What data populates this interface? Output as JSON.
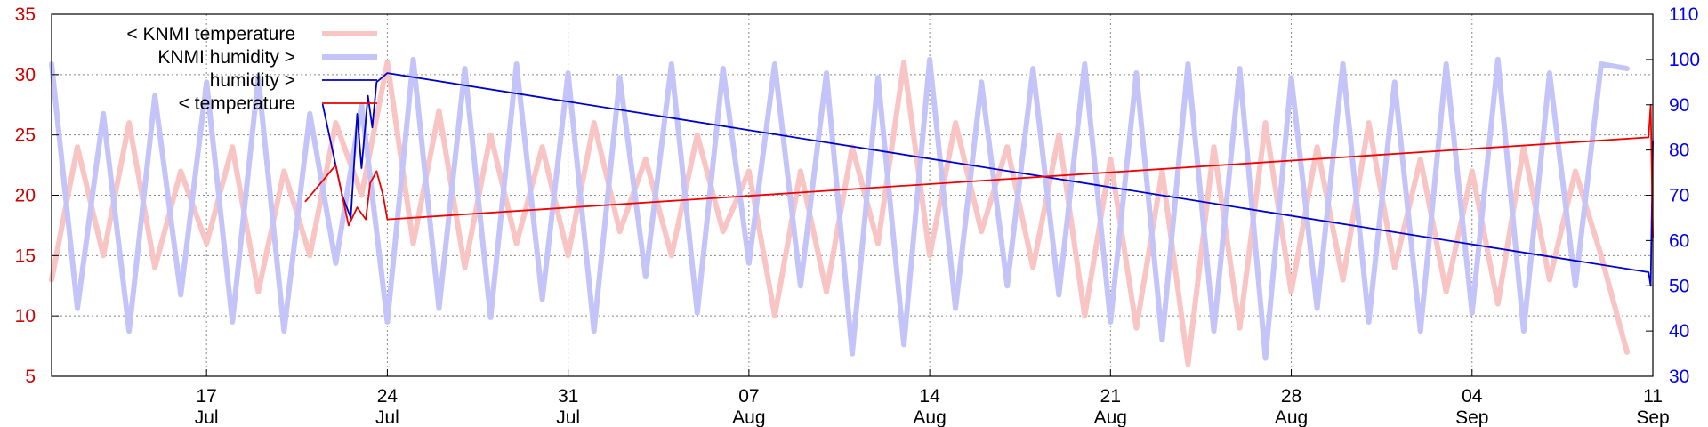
{
  "chart_data": {
    "type": "line",
    "title": "",
    "xlabel": "",
    "ylabel_left": "",
    "ylabel_right": "",
    "xlim": [
      "2019-07-11",
      "2019-09-11"
    ],
    "ylim_left": [
      5,
      35
    ],
    "ylim_right": [
      30,
      110
    ],
    "grid": true,
    "legend_position": "top-left",
    "x_ticks": [
      {
        "date": "2019-07-17",
        "day": "17",
        "month": "Jul"
      },
      {
        "date": "2019-07-24",
        "day": "24",
        "month": "Jul"
      },
      {
        "date": "2019-07-31",
        "day": "31",
        "month": "Jul"
      },
      {
        "date": "2019-08-07",
        "day": "07",
        "month": "Aug"
      },
      {
        "date": "2019-08-14",
        "day": "14",
        "month": "Aug"
      },
      {
        "date": "2019-08-21",
        "day": "21",
        "month": "Aug"
      },
      {
        "date": "2019-08-28",
        "day": "28",
        "month": "Aug"
      },
      {
        "date": "2019-09-04",
        "day": "04",
        "month": "Sep"
      },
      {
        "date": "2019-09-11",
        "day": "11",
        "month": "Sep"
      }
    ],
    "y_ticks_left": [
      5,
      10,
      15,
      20,
      25,
      30,
      35
    ],
    "y_ticks_right": [
      30,
      40,
      50,
      60,
      70,
      80,
      90,
      100,
      110
    ],
    "series": [
      {
        "name": "< KNMI temperature",
        "axis": "left",
        "color": "#f8c4c4",
        "points": [
          [
            "2019-07-11",
            13
          ],
          [
            "2019-07-12",
            24
          ],
          [
            "2019-07-13",
            15
          ],
          [
            "2019-07-14",
            26
          ],
          [
            "2019-07-15",
            14
          ],
          [
            "2019-07-16",
            22
          ],
          [
            "2019-07-17",
            16
          ],
          [
            "2019-07-18",
            24
          ],
          [
            "2019-07-19",
            12
          ],
          [
            "2019-07-20",
            22
          ],
          [
            "2019-07-21",
            15
          ],
          [
            "2019-07-22",
            26
          ],
          [
            "2019-07-23",
            20
          ],
          [
            "2019-07-24",
            31
          ],
          [
            "2019-07-25",
            16
          ],
          [
            "2019-07-26",
            27
          ],
          [
            "2019-07-27",
            14
          ],
          [
            "2019-07-28",
            25
          ],
          [
            "2019-07-29",
            16
          ],
          [
            "2019-07-30",
            24
          ],
          [
            "2019-07-31",
            15
          ],
          [
            "2019-08-01",
            26
          ],
          [
            "2019-08-02",
            17
          ],
          [
            "2019-08-03",
            23
          ],
          [
            "2019-08-04",
            15
          ],
          [
            "2019-08-05",
            25
          ],
          [
            "2019-08-06",
            17
          ],
          [
            "2019-08-07",
            22
          ],
          [
            "2019-08-08",
            10
          ],
          [
            "2019-08-09",
            22
          ],
          [
            "2019-08-10",
            12
          ],
          [
            "2019-08-11",
            24
          ],
          [
            "2019-08-12",
            16
          ],
          [
            "2019-08-13",
            31
          ],
          [
            "2019-08-14",
            15
          ],
          [
            "2019-08-15",
            26
          ],
          [
            "2019-08-16",
            17
          ],
          [
            "2019-08-17",
            24
          ],
          [
            "2019-08-18",
            14
          ],
          [
            "2019-08-19",
            25
          ],
          [
            "2019-08-20",
            10
          ],
          [
            "2019-08-21",
            23
          ],
          [
            "2019-08-22",
            9
          ],
          [
            "2019-08-23",
            22
          ],
          [
            "2019-08-24",
            6
          ],
          [
            "2019-08-25",
            24
          ],
          [
            "2019-08-26",
            9
          ],
          [
            "2019-08-27",
            26
          ],
          [
            "2019-08-28",
            12
          ],
          [
            "2019-08-29",
            24
          ],
          [
            "2019-08-30",
            13
          ],
          [
            "2019-08-31",
            26
          ],
          [
            "2019-09-01",
            14
          ],
          [
            "2019-09-02",
            23
          ],
          [
            "2019-09-03",
            12
          ],
          [
            "2019-09-04",
            22
          ],
          [
            "2019-09-05",
            11
          ],
          [
            "2019-09-06",
            24
          ],
          [
            "2019-09-07",
            13
          ],
          [
            "2019-09-08",
            22
          ],
          [
            "2019-09-09",
            15
          ],
          [
            "2019-09-10",
            7
          ]
        ]
      },
      {
        "name": "KNMI humidity >",
        "axis": "right",
        "color": "#c4c4f8",
        "points": [
          [
            "2019-07-11",
            99
          ],
          [
            "2019-07-12",
            45
          ],
          [
            "2019-07-13",
            88
          ],
          [
            "2019-07-14",
            40
          ],
          [
            "2019-07-15",
            92
          ],
          [
            "2019-07-16",
            48
          ],
          [
            "2019-07-17",
            95
          ],
          [
            "2019-07-18",
            42
          ],
          [
            "2019-07-19",
            96
          ],
          [
            "2019-07-20",
            40
          ],
          [
            "2019-07-21",
            88
          ],
          [
            "2019-07-22",
            55
          ],
          [
            "2019-07-23",
            90
          ],
          [
            "2019-07-24",
            42
          ],
          [
            "2019-07-25",
            100
          ],
          [
            "2019-07-26",
            45
          ],
          [
            "2019-07-27",
            98
          ],
          [
            "2019-07-28",
            43
          ],
          [
            "2019-07-29",
            99
          ],
          [
            "2019-07-30",
            47
          ],
          [
            "2019-07-31",
            97
          ],
          [
            "2019-08-01",
            40
          ],
          [
            "2019-08-02",
            96
          ],
          [
            "2019-08-03",
            52
          ],
          [
            "2019-08-04",
            99
          ],
          [
            "2019-08-05",
            44
          ],
          [
            "2019-08-06",
            98
          ],
          [
            "2019-08-07",
            55
          ],
          [
            "2019-08-08",
            99
          ],
          [
            "2019-08-09",
            50
          ],
          [
            "2019-08-10",
            97
          ],
          [
            "2019-08-11",
            35
          ],
          [
            "2019-08-12",
            96
          ],
          [
            "2019-08-13",
            37
          ],
          [
            "2019-08-14",
            100
          ],
          [
            "2019-08-15",
            45
          ],
          [
            "2019-08-16",
            95
          ],
          [
            "2019-08-17",
            50
          ],
          [
            "2019-08-18",
            98
          ],
          [
            "2019-08-19",
            48
          ],
          [
            "2019-08-20",
            99
          ],
          [
            "2019-08-21",
            42
          ],
          [
            "2019-08-22",
            97
          ],
          [
            "2019-08-23",
            38
          ],
          [
            "2019-08-24",
            99
          ],
          [
            "2019-08-25",
            40
          ],
          [
            "2019-08-26",
            98
          ],
          [
            "2019-08-27",
            34
          ],
          [
            "2019-08-28",
            96
          ],
          [
            "2019-08-29",
            45
          ],
          [
            "2019-08-30",
            99
          ],
          [
            "2019-08-31",
            42
          ],
          [
            "2019-09-01",
            95
          ],
          [
            "2019-09-02",
            40
          ],
          [
            "2019-09-03",
            99
          ],
          [
            "2019-09-04",
            44
          ],
          [
            "2019-09-05",
            100
          ],
          [
            "2019-09-06",
            40
          ],
          [
            "2019-09-07",
            97
          ],
          [
            "2019-09-08",
            50
          ],
          [
            "2019-09-09",
            99
          ],
          [
            "2019-09-10",
            98
          ]
        ]
      },
      {
        "name": "humidity >",
        "axis": "right",
        "color": "#0000cc",
        "points": [
          [
            "2019-07-21 12:00",
            90
          ],
          [
            "2019-07-22 06:00",
            70
          ],
          [
            "2019-07-22 14:00",
            65
          ],
          [
            "2019-07-22 20:00",
            88
          ],
          [
            "2019-07-23 00:00",
            76
          ],
          [
            "2019-07-23 06:00",
            92
          ],
          [
            "2019-07-23 10:00",
            85
          ],
          [
            "2019-07-23 14:00",
            95
          ],
          [
            "2019-07-24 00:00",
            97
          ],
          [
            "2019-09-10 20:00",
            53
          ],
          [
            "2019-09-10 22:00",
            50
          ],
          [
            "2019-09-11 00:00",
            82
          ]
        ]
      },
      {
        "name": "< temperature",
        "axis": "left",
        "color": "#ee0000",
        "points": [
          [
            "2019-07-20 20:00",
            19.5
          ],
          [
            "2019-07-22 00:00",
            22.5
          ],
          [
            "2019-07-22 12:00",
            17.5
          ],
          [
            "2019-07-22 20:00",
            19
          ],
          [
            "2019-07-23 04:00",
            18
          ],
          [
            "2019-07-23 08:00",
            21
          ],
          [
            "2019-07-23 14:00",
            22
          ],
          [
            "2019-07-23 20:00",
            20
          ],
          [
            "2019-07-24 00:00",
            18
          ],
          [
            "2019-09-10 20:00",
            24.8
          ],
          [
            "2019-09-10 22:00",
            27.5
          ],
          [
            "2019-09-11 00:00",
            16.5
          ]
        ]
      }
    ]
  }
}
